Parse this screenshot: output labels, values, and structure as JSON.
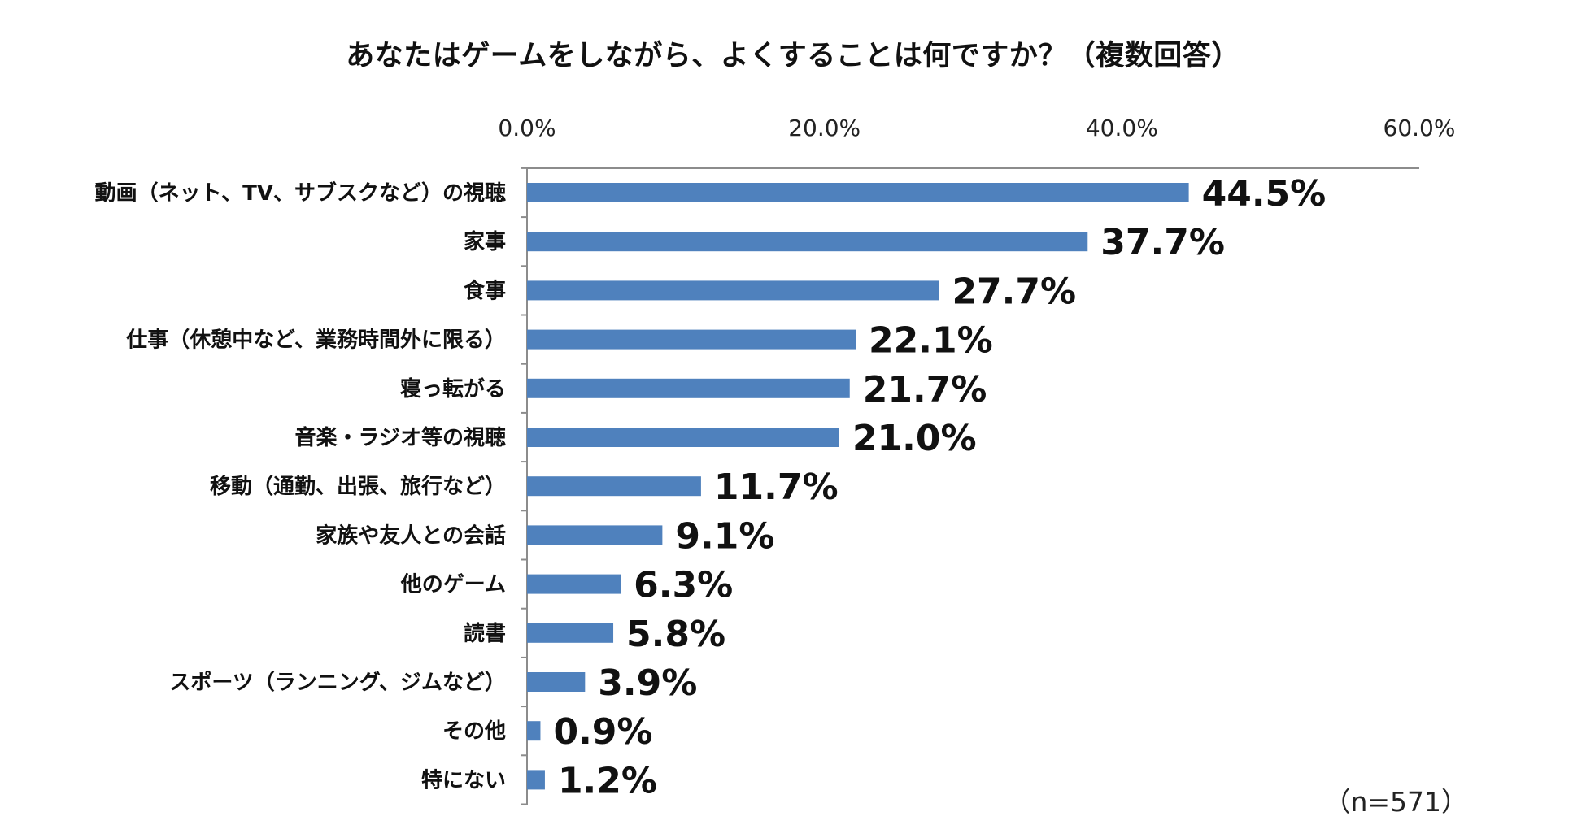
{
  "chart_data": {
    "type": "bar",
    "orientation": "horizontal",
    "title": "あなたはゲームをしながら、よくすることは何ですか？（複数回答）",
    "categories": [
      "動画（ネット、TV、サブスクなど）の視聴",
      "家事",
      "食事",
      "仕事（休憩中など、業務時間外に限る）",
      "寝っ転がる",
      "音楽・ラジオ等の視聴",
      "移動（通勤、出張、旅行など）",
      "家族や友人との会話",
      "他のゲーム",
      "読書",
      "スポーツ（ランニング、ジムなど）",
      "その他",
      "特にない"
    ],
    "values": [
      44.5,
      37.7,
      27.7,
      22.1,
      21.7,
      21.0,
      11.7,
      9.1,
      6.3,
      5.8,
      3.9,
      0.9,
      1.2
    ],
    "value_labels": [
      "44.5%",
      "37.7%",
      "27.7%",
      "22.1%",
      "21.7%",
      "21.0%",
      "11.7%",
      "9.1%",
      "6.3%",
      "5.8%",
      "3.9%",
      "0.9%",
      "1.2%"
    ],
    "xlim": [
      0,
      60
    ],
    "x_ticks": [
      0,
      20,
      40,
      60
    ],
    "x_tick_labels": [
      "0.0%",
      "20.0%",
      "40.0%",
      "60.0%"
    ],
    "axis_position": "top",
    "grid": false,
    "legend": false,
    "bar_color": "#4f81bd",
    "sample_note": "（n=571）"
  }
}
